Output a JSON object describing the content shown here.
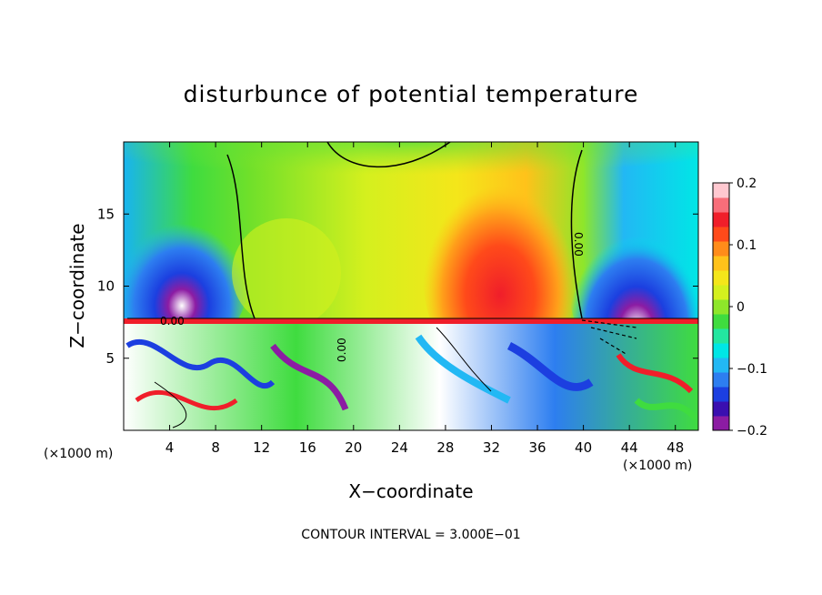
{
  "chart_data": {
    "type": "heatmap",
    "title": "disturbunce of potential temperature",
    "xlabel": "X−coordinate",
    "ylabel": "Z−coordinate",
    "x_unit_left": "(×1000 m)",
    "x_unit_right": "(×1000 m)",
    "xlim": [
      0,
      50
    ],
    "ylim": [
      0,
      20
    ],
    "x_ticks": [
      4,
      8,
      12,
      16,
      20,
      24,
      28,
      32,
      36,
      40,
      44,
      48
    ],
    "y_ticks": [
      5,
      10,
      15
    ],
    "colorbar": {
      "range": [
        -0.2,
        0.2
      ],
      "tick_labels": [
        "0.2",
        "0.1",
        "0",
        "−0.1",
        "−0.2"
      ],
      "colors": [
        "#8c1ca3",
        "#3a0fb0",
        "#1c3fe0",
        "#2d7ef0",
        "#22b8f4",
        "#00e6e6",
        "#23e6a0",
        "#3fdc3f",
        "#8ee62a",
        "#d4f01e",
        "#f4e61a",
        "#ffc21a",
        "#ff8c1a",
        "#ff4a1a",
        "#f01e2a",
        "#f86e7a",
        "#ffc8d0"
      ]
    },
    "contour_label": "0.00",
    "contour_interval_text": "CONTOUR INTERVAL = 3.000E−01"
  }
}
